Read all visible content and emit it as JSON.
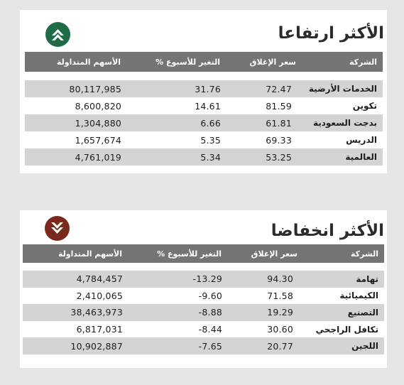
{
  "colors": {
    "up_badge": "#1f6b45",
    "down_badge": "#7a2a1c",
    "header_bg": "#747474",
    "stripe": "#d4d4d4"
  },
  "headers": {
    "company": "الشركة",
    "close": "سعر الإغلاق",
    "change": "التغير للأسبوع %",
    "volume": "الأسهم المتداولة"
  },
  "gainers": {
    "title": "الأكثر ارتفاعا",
    "icon": "double-up-arrow-icon",
    "rows": [
      {
        "name": "الخدمات الأرضية",
        "close": "72.47",
        "change": "31.76",
        "volume": "80,117,985"
      },
      {
        "name": "تكوين",
        "close": "81.59",
        "change": "14.61",
        "volume": "8,600,820"
      },
      {
        "name": "بدجت السعودية",
        "close": "61.81",
        "change": "6.66",
        "volume": "1,304,880"
      },
      {
        "name": "الدريس",
        "close": "69.33",
        "change": "5.35",
        "volume": "1,657,674"
      },
      {
        "name": "العالمية",
        "close": "53.25",
        "change": "5.34",
        "volume": "4,761,019"
      }
    ]
  },
  "losers": {
    "title": "الأكثر انخفاضا",
    "icon": "double-down-arrow-icon",
    "rows": [
      {
        "name": "تهامة",
        "close": "94.30",
        "change": "-13.29",
        "volume": "4,784,457"
      },
      {
        "name": "الكيميائية",
        "close": "71.58",
        "change": "-9.60",
        "volume": "2,410,065"
      },
      {
        "name": "التصنيع",
        "close": "19.29",
        "change": "-8.88",
        "volume": "38,463,973"
      },
      {
        "name": "تكافل الراجحي",
        "close": "30.60",
        "change": "-8.44",
        "volume": "6,817,031"
      },
      {
        "name": "اللجين",
        "close": "20.77",
        "change": "-7.65",
        "volume": "10,902,887"
      }
    ]
  }
}
